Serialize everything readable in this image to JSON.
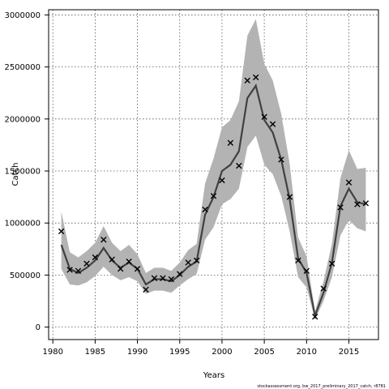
{
  "chart_data": {
    "type": "line",
    "xlabel": "Years",
    "ylabel": "Catch",
    "xlim": [
      1979.5,
      2018.5
    ],
    "ylim": [
      -120000,
      3050000
    ],
    "xticks": [
      1980,
      1985,
      1990,
      1995,
      2000,
      2005,
      2010,
      2015
    ],
    "yticks": [
      0,
      500000,
      1000000,
      1500000,
      2000000,
      2500000,
      3000000
    ],
    "grid": true,
    "credit": "stockassessment.org, bw_2017_preliminary_2017_catch, r8781",
    "colors": {
      "line": "#404040",
      "band": "#b3b3b3",
      "points": "#000000",
      "grid": "#555555"
    },
    "series": [
      {
        "role": "estimate",
        "x": [
          1981,
          1982,
          1983,
          1984,
          1985,
          1986,
          1987,
          1988,
          1989,
          1990,
          1991,
          1992,
          1993,
          1994,
          1995,
          1996,
          1997,
          1998,
          1999,
          2000,
          2001,
          2002,
          2003,
          2004,
          2005,
          2006,
          2007,
          2008,
          2009,
          2010,
          2011,
          2012,
          2013,
          2014,
          2015,
          2016,
          2017
        ],
        "y": [
          790000,
          560000,
          520000,
          570000,
          640000,
          760000,
          640000,
          570000,
          620000,
          560000,
          410000,
          460000,
          460000,
          440000,
          500000,
          580000,
          630000,
          1080000,
          1250000,
          1500000,
          1560000,
          1690000,
          2200000,
          2320000,
          1990000,
          1870000,
          1610000,
          1230000,
          660000,
          520000,
          110000,
          330000,
          620000,
          1160000,
          1330000,
          1200000,
          1180000
        ]
      },
      {
        "role": "lower-bound",
        "x": [
          1981,
          1982,
          1983,
          1984,
          1985,
          1986,
          1987,
          1988,
          1989,
          1990,
          1991,
          1992,
          1993,
          1994,
          1995,
          1996,
          1997,
          1998,
          1999,
          2000,
          2001,
          2002,
          2003,
          2004,
          2005,
          2006,
          2007,
          2008,
          2009,
          2010,
          2011,
          2012,
          2013,
          2014,
          2015,
          2016,
          2017
        ],
        "y": [
          560000,
          410000,
          400000,
          430000,
          490000,
          580000,
          500000,
          450000,
          480000,
          440000,
          320000,
          350000,
          350000,
          330000,
          400000,
          460000,
          510000,
          840000,
          960000,
          1180000,
          1230000,
          1330000,
          1730000,
          1840000,
          1560000,
          1470000,
          1260000,
          920000,
          480000,
          380000,
          70000,
          250000,
          480000,
          880000,
          1030000,
          950000,
          920000
        ]
      },
      {
        "role": "upper-bound",
        "x": [
          1981,
          1982,
          1983,
          1984,
          1985,
          1986,
          1987,
          1988,
          1989,
          1990,
          1991,
          1992,
          1993,
          1994,
          1995,
          1996,
          1997,
          1998,
          1999,
          2000,
          2001,
          2002,
          2003,
          2004,
          2005,
          2006,
          2007,
          2008,
          2009,
          2010,
          2011,
          2012,
          2013,
          2014,
          2015,
          2016,
          2017
        ],
        "y": [
          1110000,
          720000,
          670000,
          730000,
          810000,
          970000,
          810000,
          730000,
          790000,
          700000,
          520000,
          570000,
          570000,
          540000,
          620000,
          740000,
          800000,
          1380000,
          1620000,
          1920000,
          1990000,
          2170000,
          2800000,
          2960000,
          2530000,
          2370000,
          2050000,
          1570000,
          860000,
          680000,
          150000,
          440000,
          800000,
          1430000,
          1700000,
          1520000,
          1530000
        ]
      },
      {
        "role": "observed",
        "marker": "x",
        "x": [
          1981,
          1982,
          1983,
          1984,
          1985,
          1986,
          1987,
          1988,
          1989,
          1990,
          1991,
          1992,
          1993,
          1994,
          1995,
          1996,
          1997,
          1998,
          1999,
          2000,
          2001,
          2002,
          2003,
          2004,
          2005,
          2006,
          2007,
          2008,
          2009,
          2010,
          2011,
          2012,
          2013,
          2014,
          2015,
          2016,
          2017
        ],
        "y": [
          920000,
          550000,
          540000,
          610000,
          670000,
          840000,
          650000,
          560000,
          630000,
          560000,
          360000,
          470000,
          470000,
          460000,
          510000,
          620000,
          640000,
          1130000,
          1260000,
          1410000,
          1770000,
          1550000,
          2370000,
          2400000,
          2020000,
          1950000,
          1610000,
          1250000,
          640000,
          540000,
          100000,
          370000,
          610000,
          1150000,
          1390000,
          1180000,
          1190000
        ]
      }
    ]
  }
}
